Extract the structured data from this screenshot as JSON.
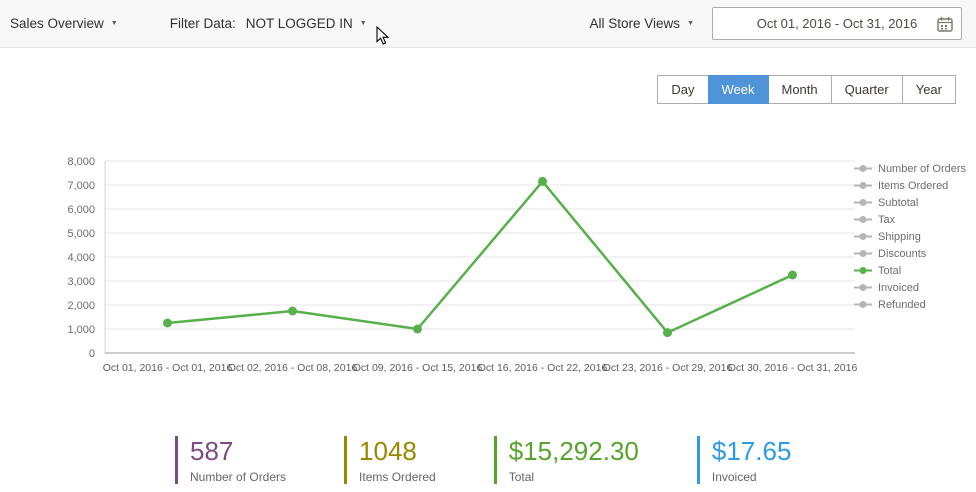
{
  "topbar": {
    "report_selector": "Sales Overview",
    "filter_label": "Filter Data:",
    "logged_in_filter": "NOT LOGGED IN",
    "store_selector": "All Store Views",
    "date_range": "Oct 01, 2016  -  Oct 31, 2016"
  },
  "icons": {
    "chevron_down": "▼"
  },
  "period_switcher": {
    "options": [
      "Day",
      "Week",
      "Month",
      "Quarter",
      "Year"
    ],
    "selected": "Week",
    "selected_color": "#4f93d8"
  },
  "chart_data": {
    "type": "line",
    "title": "",
    "xlabel": "",
    "ylabel": "",
    "categories": [
      "Oct 01, 2016 - Oct 01, 2016",
      "Oct 02, 2016 - Oct 08, 2016",
      "Oct 09, 2016 - Oct 15, 2016",
      "Oct 16, 2016 - Oct 22, 2016",
      "Oct 23, 2016 - Oct 29, 2016",
      "Oct 30, 2016 - Oct 31, 2016"
    ],
    "series": [
      {
        "name": "Total",
        "values": [
          1250,
          1750,
          1000,
          7150,
          850,
          3250
        ],
        "color": "#57b14a"
      }
    ],
    "ylim": [
      0,
      8000
    ],
    "ytick_step": 1000,
    "grid": true,
    "legend_position": "right",
    "legend": [
      {
        "label": "Number of Orders",
        "active": false
      },
      {
        "label": "Items Ordered",
        "active": false
      },
      {
        "label": "Subtotal",
        "active": false
      },
      {
        "label": "Tax",
        "active": false
      },
      {
        "label": "Shipping",
        "active": false
      },
      {
        "label": "Discounts",
        "active": false
      },
      {
        "label": "Total",
        "active": true
      },
      {
        "label": "Invoiced",
        "active": false
      },
      {
        "label": "Refunded",
        "active": false
      }
    ],
    "inactive_color": "#b5b5b5",
    "active_color": "#57b14a"
  },
  "totals": [
    {
      "value": "587",
      "label": "Number of Orders",
      "color": "#7e4a83"
    },
    {
      "value": "1048",
      "label": "Items Ordered",
      "color": "#9b8700"
    },
    {
      "value": "$15,292.30",
      "label": "Total",
      "color": "#58a32e"
    },
    {
      "value": "$17.65",
      "label": "Invoiced",
      "color": "#2e9be4"
    }
  ]
}
